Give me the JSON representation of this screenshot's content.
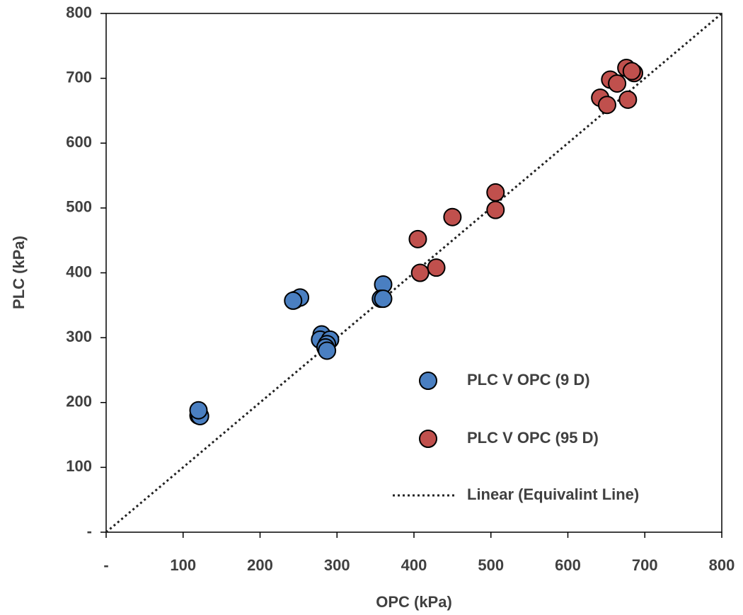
{
  "chart_data": {
    "type": "scatter",
    "x_label": "OPC (kPa)",
    "y_label": "PLC (kPa)",
    "xlim": [
      0,
      800
    ],
    "ylim": [
      0,
      800
    ],
    "xticks": [
      {
        "value": 0,
        "label": "-"
      },
      100,
      200,
      300,
      400,
      500,
      600,
      700,
      800
    ],
    "yticks": [
      {
        "value": 0,
        "label": "-"
      },
      100,
      200,
      300,
      400,
      500,
      600,
      700,
      800
    ],
    "series": [
      {
        "name": "PLC V OPC (9 D)",
        "color": "#4a7fc1",
        "x": [
          120,
          122,
          120,
          245,
          252,
          243,
          280,
          278,
          291,
          287,
          285,
          287,
          360,
          357,
          360
        ],
        "values": [
          180,
          179,
          188,
          358,
          362,
          357,
          305,
          297,
          297,
          290,
          285,
          280,
          382,
          360,
          360
        ]
      },
      {
        "name": "PLC V OPC (95 D)",
        "color": "#c0504d",
        "x": [
          405,
          408,
          429,
          450,
          506,
          506,
          642,
          651,
          655,
          664,
          676,
          678,
          686,
          683
        ],
        "values": [
          452,
          400,
          408,
          486,
          497,
          524,
          670,
          659,
          698,
          692,
          716,
          667,
          708,
          711
        ]
      },
      {
        "name": "Linear (Equivalint Line)",
        "color": "#222222",
        "style": "dotted",
        "x": [
          0,
          800
        ],
        "values": [
          0,
          800
        ]
      }
    ]
  }
}
